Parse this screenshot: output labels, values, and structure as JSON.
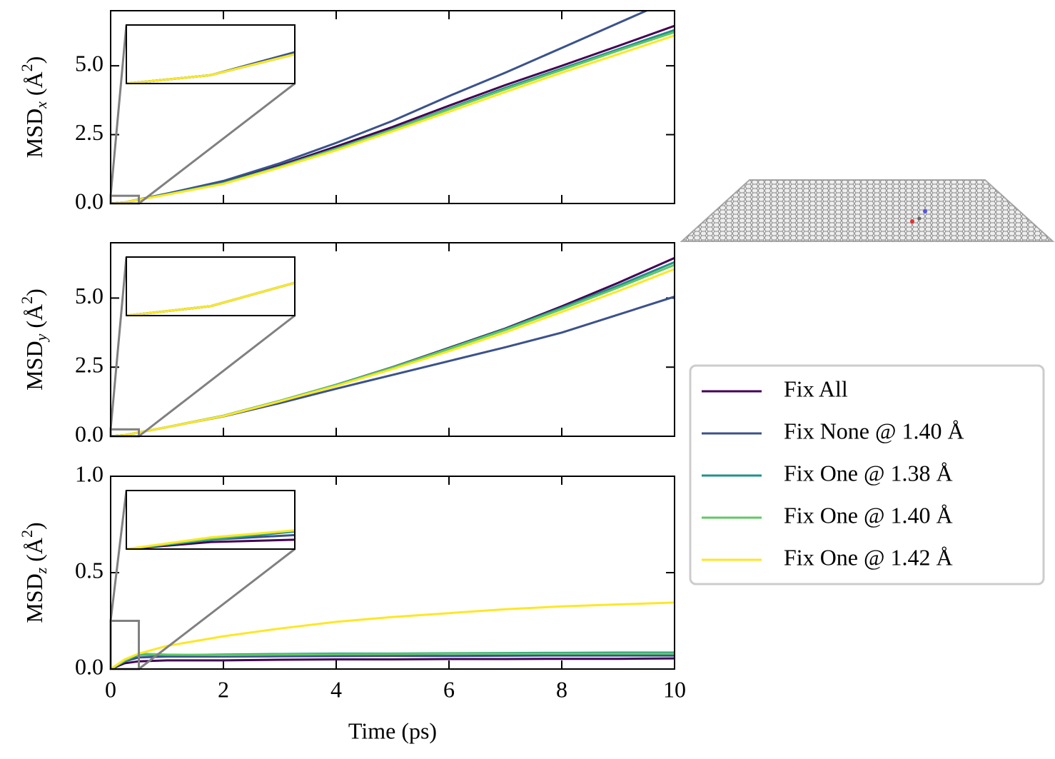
{
  "chart_data": [
    {
      "type": "line",
      "ylabel": {
        "main": "MSD",
        "sub": "x",
        "unit": "(Å",
        "sup": "2",
        "close": ")"
      },
      "x": [
        0,
        0.25,
        0.5,
        1,
        2,
        3,
        4,
        5,
        6,
        7,
        8,
        9,
        10
      ],
      "xlim": [
        0,
        10
      ],
      "xticks": [
        0,
        2,
        4,
        6,
        8,
        10
      ],
      "show_xticklabels": false,
      "ylim": [
        0,
        7.0
      ],
      "yticks": [
        {
          "value": 0,
          "label": "0.0"
        },
        2.5,
        {
          "value": 5,
          "label": "5.0"
        }
      ],
      "inset": {
        "xlim": [
          0,
          0.5
        ],
        "ylim": [
          0,
          0.28
        ]
      },
      "series": [
        {
          "name": "Fix All",
          "color": "#440154",
          "values": [
            0,
            0.04,
            0.14,
            0.34,
            0.76,
            1.38,
            2.07,
            2.78,
            3.55,
            4.3,
            5.0,
            5.72,
            6.45
          ]
        },
        {
          "name": "Fix None @ 1.40 Å",
          "color": "#3b528b",
          "values": [
            0,
            0.04,
            0.15,
            0.36,
            0.82,
            1.46,
            2.2,
            3.0,
            3.9,
            4.75,
            5.65,
            6.55,
            7.45
          ]
        },
        {
          "name": "Fix One @ 1.38 Å",
          "color": "#21918c",
          "values": [
            0,
            0.04,
            0.14,
            0.33,
            0.74,
            1.34,
            2.0,
            2.7,
            3.45,
            4.2,
            4.9,
            5.6,
            6.3
          ]
        },
        {
          "name": "Fix One @ 1.40 Å",
          "color": "#5ec962",
          "values": [
            0,
            0.04,
            0.14,
            0.33,
            0.73,
            1.33,
            1.98,
            2.68,
            3.42,
            4.15,
            4.85,
            5.55,
            6.22
          ]
        },
        {
          "name": "Fix One @ 1.42 Å",
          "color": "#fde725",
          "values": [
            0,
            0.04,
            0.14,
            0.32,
            0.71,
            1.3,
            1.93,
            2.62,
            3.33,
            4.05,
            4.75,
            5.42,
            6.1
          ]
        }
      ]
    },
    {
      "type": "line",
      "ylabel": {
        "main": "MSD",
        "sub": "y",
        "unit": "(Å",
        "sup": "2",
        "close": ")"
      },
      "x": [
        0,
        0.25,
        0.5,
        1,
        2,
        3,
        4,
        5,
        6,
        7,
        8,
        9,
        10
      ],
      "xlim": [
        0,
        10
      ],
      "xticks": [
        0,
        2,
        4,
        6,
        8,
        10
      ],
      "show_xticklabels": false,
      "ylim": [
        0,
        7.0
      ],
      "yticks": [
        {
          "value": 0,
          "label": "0.0"
        },
        2.5,
        {
          "value": 5,
          "label": "5.0"
        }
      ],
      "inset": {
        "xlim": [
          0,
          0.5
        ],
        "ylim": [
          0,
          0.25
        ]
      },
      "series": [
        {
          "color": "#440154",
          "values": [
            0,
            0.04,
            0.14,
            0.33,
            0.74,
            1.28,
            1.86,
            2.5,
            3.2,
            3.9,
            4.7,
            5.55,
            6.45
          ]
        },
        {
          "color": "#3b528b",
          "values": [
            0,
            0.04,
            0.14,
            0.33,
            0.72,
            1.2,
            1.72,
            2.22,
            2.72,
            3.22,
            3.75,
            4.4,
            5.05
          ]
        },
        {
          "color": "#21918c",
          "values": [
            0,
            0.04,
            0.14,
            0.33,
            0.74,
            1.28,
            1.86,
            2.49,
            3.18,
            3.88,
            4.65,
            5.45,
            6.3
          ]
        },
        {
          "color": "#5ec962",
          "values": [
            0,
            0.04,
            0.14,
            0.33,
            0.74,
            1.28,
            1.85,
            2.48,
            3.16,
            3.85,
            4.6,
            5.38,
            6.2
          ]
        },
        {
          "color": "#fde725",
          "values": [
            0,
            0.04,
            0.14,
            0.33,
            0.73,
            1.26,
            1.82,
            2.43,
            3.08,
            3.76,
            4.5,
            5.25,
            6.05
          ]
        }
      ]
    },
    {
      "type": "line",
      "ylabel": {
        "main": "MSD",
        "sub": "z",
        "unit": "(Å",
        "sup": "2",
        "close": ")"
      },
      "xlabel": "Time (ps)",
      "x": [
        0,
        0.25,
        0.5,
        1,
        2,
        3,
        4,
        5,
        6,
        7,
        8,
        9,
        10
      ],
      "xlim": [
        0,
        10
      ],
      "xticks": [
        0,
        2,
        4,
        6,
        8,
        10
      ],
      "show_xticklabels": true,
      "ylim": [
        0,
        1.0
      ],
      "yticks": [
        {
          "value": 0,
          "label": "0.0"
        },
        0.5,
        {
          "value": 1,
          "label": "1.0"
        }
      ],
      "inset": {
        "xlim": [
          0,
          0.5
        ],
        "ylim": [
          0,
          0.25
        ]
      },
      "series": [
        {
          "color": "#440154",
          "values": [
            0,
            0.03,
            0.04,
            0.045,
            0.045,
            0.048,
            0.05,
            0.05,
            0.052,
            0.052,
            0.053,
            0.053,
            0.055
          ]
        },
        {
          "color": "#3b528b",
          "values": [
            0,
            0.04,
            0.06,
            0.065,
            0.065,
            0.066,
            0.067,
            0.068,
            0.068,
            0.069,
            0.07,
            0.07,
            0.07
          ]
        },
        {
          "color": "#21918c",
          "values": [
            0,
            0.04,
            0.075,
            0.072,
            0.075,
            0.078,
            0.08,
            0.08,
            0.082,
            0.083,
            0.084,
            0.085,
            0.085
          ]
        },
        {
          "color": "#5ec962",
          "values": [
            0,
            0.045,
            0.08,
            0.075,
            0.072,
            0.075,
            0.077,
            0.078,
            0.08,
            0.08,
            0.08,
            0.08,
            0.08
          ]
        },
        {
          "color": "#fde725",
          "values": [
            0,
            0.05,
            0.08,
            0.12,
            0.17,
            0.21,
            0.245,
            0.27,
            0.29,
            0.31,
            0.325,
            0.335,
            0.345
          ]
        }
      ]
    }
  ]
}
